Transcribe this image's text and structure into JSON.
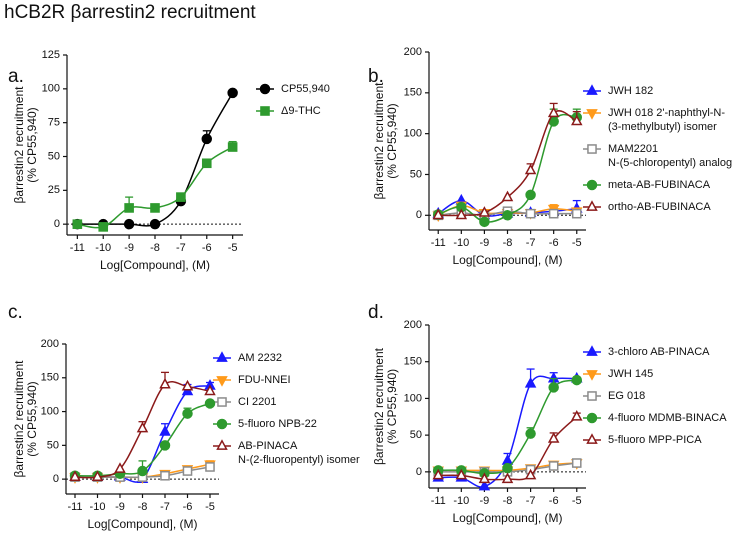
{
  "title": "hCB2R βarrestin2 recruitment",
  "chart_data": [
    {
      "type": "line",
      "label": "a.",
      "ylabel": [
        "βarrestin2 recruitment",
        "(% CP55,940)"
      ],
      "xlabel": "Log[Compound], (M)",
      "x": [
        -11,
        -10,
        -9,
        -8,
        -7,
        -6,
        -5
      ],
      "xlim": [
        -11.4,
        -4.6
      ],
      "xticks": [
        -11,
        -10,
        -9,
        -8,
        -7,
        -6,
        -5
      ],
      "ylim": [
        -8,
        125
      ],
      "yticks": [
        0,
        25,
        50,
        75,
        100,
        125
      ],
      "zero_line": true,
      "series": [
        {
          "name": [
            "CP55,940"
          ],
          "color": "#000000",
          "marker": "circle",
          "filled": true,
          "values": [
            0,
            0,
            0,
            0,
            17,
            63,
            97
          ],
          "errors": [
            null,
            null,
            null,
            null,
            3,
            6,
            null
          ]
        },
        {
          "name": [
            "Δ9-THC"
          ],
          "color": "#2e9a2e",
          "marker": "square",
          "filled": true,
          "values": [
            0,
            -2,
            12,
            12,
            20,
            45,
            57
          ],
          "errors": [
            null,
            null,
            8,
            null,
            null,
            null,
            4
          ]
        }
      ]
    },
    {
      "type": "line",
      "label": "b.",
      "ylabel": [
        "βarrestin2 recruitment",
        "(% CP55,940)"
      ],
      "xlabel": "Log[Compound], (M)",
      "x": [
        -11,
        -10,
        -9,
        -8,
        -7,
        -6,
        -5
      ],
      "xlim": [
        -11.4,
        -4.6
      ],
      "xticks": [
        -11,
        -10,
        -9,
        -8,
        -7,
        -6,
        -5
      ],
      "ylim": [
        -18,
        200
      ],
      "yticks": [
        0,
        50,
        100,
        150,
        200
      ],
      "zero_line": true,
      "series": [
        {
          "name": [
            "JWH 182"
          ],
          "color": "#1a1aff",
          "marker": "triangle-up",
          "filled": true,
          "values": [
            2,
            18,
            0,
            2,
            3,
            5,
            8
          ],
          "errors": [
            null,
            null,
            null,
            null,
            null,
            null,
            10
          ]
        },
        {
          "name": [
            "JWH 018 2'-naphthyl-N-",
            "(3-methylbutyl) isomer"
          ],
          "color": "#ff9a1a",
          "marker": "triangle-down",
          "filled": true,
          "values": [
            0,
            12,
            3,
            3,
            3,
            8,
            5
          ],
          "errors": [
            null,
            null,
            null,
            null,
            null,
            5,
            null
          ]
        },
        {
          "name": [
            "MAM2201",
            "N-(5-chloropentyl) analog"
          ],
          "color": "#8c8c8c",
          "marker": "square",
          "filled": false,
          "values": [
            0,
            3,
            0,
            5,
            2,
            2,
            2
          ],
          "errors": [
            null,
            null,
            null,
            null,
            null,
            null,
            null
          ]
        },
        {
          "name": [
            "meta-AB-FUBINACA"
          ],
          "color": "#2e9a2e",
          "marker": "circle",
          "filled": true,
          "values": [
            1,
            10,
            -8,
            0,
            25,
            115,
            120
          ],
          "errors": [
            null,
            null,
            null,
            null,
            null,
            15,
            10
          ]
        },
        {
          "name": [
            "ortho-AB-FUBINACA"
          ],
          "color": "#8b1a1a",
          "marker": "triangle-up",
          "filled": false,
          "values": [
            0,
            0,
            3,
            22,
            55,
            125,
            115
          ],
          "errors": [
            null,
            null,
            null,
            null,
            8,
            12,
            12
          ]
        }
      ]
    },
    {
      "type": "line",
      "label": "c.",
      "ylabel": [
        "βarrestin2 recruitment",
        "(% CP55,940)"
      ],
      "xlabel": "Log[Compound], (M)",
      "x": [
        -11,
        -10,
        -9,
        -8,
        -7,
        -6,
        -5
      ],
      "xlim": [
        -11.4,
        -4.6
      ],
      "xticks": [
        -11,
        -10,
        -9,
        -8,
        -7,
        -6,
        -5
      ],
      "ylim": [
        -22,
        200
      ],
      "yticks": [
        0,
        50,
        100,
        150,
        200
      ],
      "zero_line": true,
      "series": [
        {
          "name": [
            "AM 2232"
          ],
          "color": "#1a1aff",
          "marker": "triangle-up",
          "filled": true,
          "values": [
            3,
            3,
            3,
            0,
            70,
            130,
            138
          ],
          "errors": [
            null,
            null,
            null,
            null,
            12,
            10,
            5
          ]
        },
        {
          "name": [
            "FDU-NNEI"
          ],
          "color": "#ff9a1a",
          "marker": "triangle-down",
          "filled": true,
          "values": [
            3,
            3,
            3,
            3,
            8,
            15,
            22
          ],
          "errors": [
            null,
            null,
            null,
            null,
            null,
            null,
            5
          ]
        },
        {
          "name": [
            "CI 2201"
          ],
          "color": "#8c8c8c",
          "marker": "square",
          "filled": false,
          "values": [
            3,
            3,
            3,
            3,
            5,
            12,
            18
          ],
          "errors": [
            null,
            null,
            null,
            null,
            null,
            null,
            null
          ]
        },
        {
          "name": [
            "5-fluoro NPB-22"
          ],
          "color": "#2e9a2e",
          "marker": "circle",
          "filled": true,
          "values": [
            5,
            5,
            8,
            12,
            50,
            97,
            112
          ],
          "errors": [
            null,
            null,
            null,
            15,
            null,
            8,
            null
          ]
        },
        {
          "name": [
            "AB-PINACA",
            "N-(2-fluoropentyl) isomer"
          ],
          "color": "#8b1a1a",
          "marker": "triangle-up",
          "filled": false,
          "values": [
            3,
            3,
            15,
            75,
            140,
            137,
            130
          ],
          "errors": [
            null,
            null,
            null,
            10,
            18,
            null,
            null
          ]
        }
      ]
    },
    {
      "type": "line",
      "label": "d.",
      "ylabel": [
        "βarrestin2 recruitment",
        "(% CP55,940)"
      ],
      "xlabel": "Log[Compound], (M)",
      "x": [
        -11,
        -10,
        -9,
        -8,
        -7,
        -6,
        -5
      ],
      "xlim": [
        -11.4,
        -4.6
      ],
      "xticks": [
        -11,
        -10,
        -9,
        -8,
        -7,
        -6,
        -5
      ],
      "ylim": [
        -22,
        200
      ],
      "yticks": [
        0,
        50,
        100,
        150,
        200
      ],
      "zero_line": true,
      "series": [
        {
          "name": [
            "3-chloro AB-PINACA"
          ],
          "color": "#1a1aff",
          "marker": "triangle-up",
          "filled": true,
          "values": [
            -8,
            -8,
            -20,
            15,
            120,
            127,
            127
          ],
          "errors": [
            null,
            null,
            null,
            10,
            20,
            8,
            null
          ]
        },
        {
          "name": [
            "JWH 145"
          ],
          "color": "#ff9a1a",
          "marker": "triangle-down",
          "filled": true,
          "values": [
            2,
            2,
            2,
            2,
            5,
            10,
            12
          ],
          "errors": [
            null,
            null,
            null,
            null,
            null,
            null,
            5
          ]
        },
        {
          "name": [
            "EG 018"
          ],
          "color": "#8c8c8c",
          "marker": "square",
          "filled": false,
          "values": [
            0,
            0,
            0,
            0,
            3,
            8,
            12
          ],
          "errors": [
            null,
            null,
            null,
            null,
            null,
            null,
            4
          ]
        },
        {
          "name": [
            "4-fluoro MDMB-BINACA"
          ],
          "color": "#2e9a2e",
          "marker": "circle",
          "filled": true,
          "values": [
            2,
            2,
            -2,
            5,
            52,
            115,
            125
          ],
          "errors": [
            null,
            null,
            null,
            null,
            8,
            12,
            null
          ]
        },
        {
          "name": [
            "5-fluoro MPP-PICA"
          ],
          "color": "#8b1a1a",
          "marker": "triangle-up",
          "filled": false,
          "values": [
            -5,
            -5,
            -10,
            -10,
            -5,
            45,
            75
          ],
          "errors": [
            null,
            null,
            null,
            null,
            null,
            8,
            5
          ]
        }
      ]
    }
  ]
}
